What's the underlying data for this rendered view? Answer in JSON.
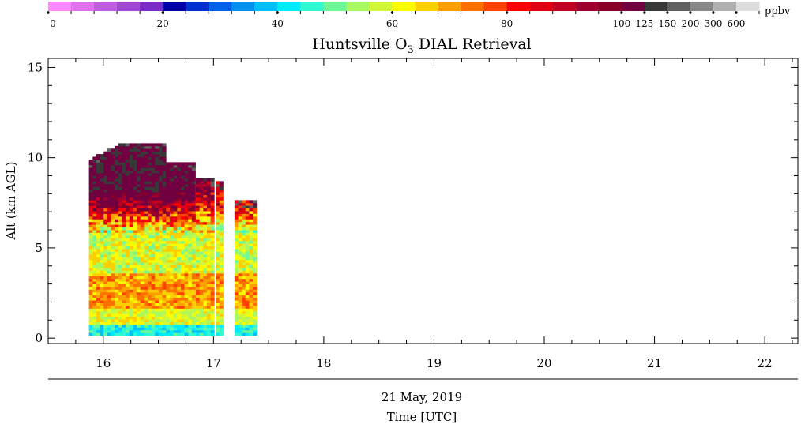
{
  "chart_data": {
    "type": "heatmap",
    "title_parts": {
      "pre": "Huntsville O",
      "sub": "3",
      "post": " DIAL Retrieval"
    },
    "ylabel": "Alt (km AGL)",
    "date_label": "21 May, 2019",
    "xlabel": "Time [UTC]",
    "x_ticks": [
      "16",
      "17",
      "18",
      "19",
      "20",
      "21",
      "22"
    ],
    "y_ticks": [
      "0",
      "5",
      "10",
      "15"
    ],
    "xlim": [
      15.5,
      22.3
    ],
    "ylim": [
      -0.3,
      15.5
    ],
    "colorbar": {
      "unit": "ppbv",
      "tick_labels": [
        "0",
        "20",
        "40",
        "60",
        "80",
        "100",
        "125",
        "150",
        "200",
        "300",
        "600"
      ],
      "colors": [
        "#ff88ff",
        "#e070ee",
        "#c05ce0",
        "#a048d4",
        "#7a2cc6",
        "#0000a8",
        "#0030d0",
        "#0060e8",
        "#0090f0",
        "#00c0f8",
        "#00ecfc",
        "#30f8d0",
        "#70f898",
        "#a8f860",
        "#d0f838",
        "#fcfc00",
        "#fcd000",
        "#fca000",
        "#fc7000",
        "#fc4000",
        "#fc0000",
        "#e00010",
        "#c00020",
        "#a00030",
        "#880028",
        "#700040",
        "#383838",
        "#606060",
        "#888888",
        "#b0b0b0",
        "#dddddd"
      ],
      "value_bounds": [
        0,
        4,
        8,
        12,
        16,
        20,
        24,
        28,
        32,
        36,
        40,
        44,
        48,
        52,
        56,
        60,
        64,
        68,
        72,
        76,
        80,
        84,
        88,
        92,
        96,
        100,
        125,
        150,
        200,
        300,
        600
      ]
    },
    "profiles": [
      {
        "t_start": 15.87,
        "t_end": 16.55,
        "alt_top": 10.8,
        "peak": 115
      },
      {
        "t_start": 16.57,
        "t_end": 16.82,
        "alt_top": 9.7,
        "peak": 110
      },
      {
        "t_start": 16.84,
        "t_end": 16.99,
        "alt_top": 8.8,
        "peak": 95
      },
      {
        "t_start": 17.02,
        "t_end": 17.08,
        "alt_top": 8.6,
        "peak": 90
      },
      {
        "t_start": 17.19,
        "t_end": 17.36,
        "alt_top": 7.6,
        "peak": 95
      }
    ]
  }
}
